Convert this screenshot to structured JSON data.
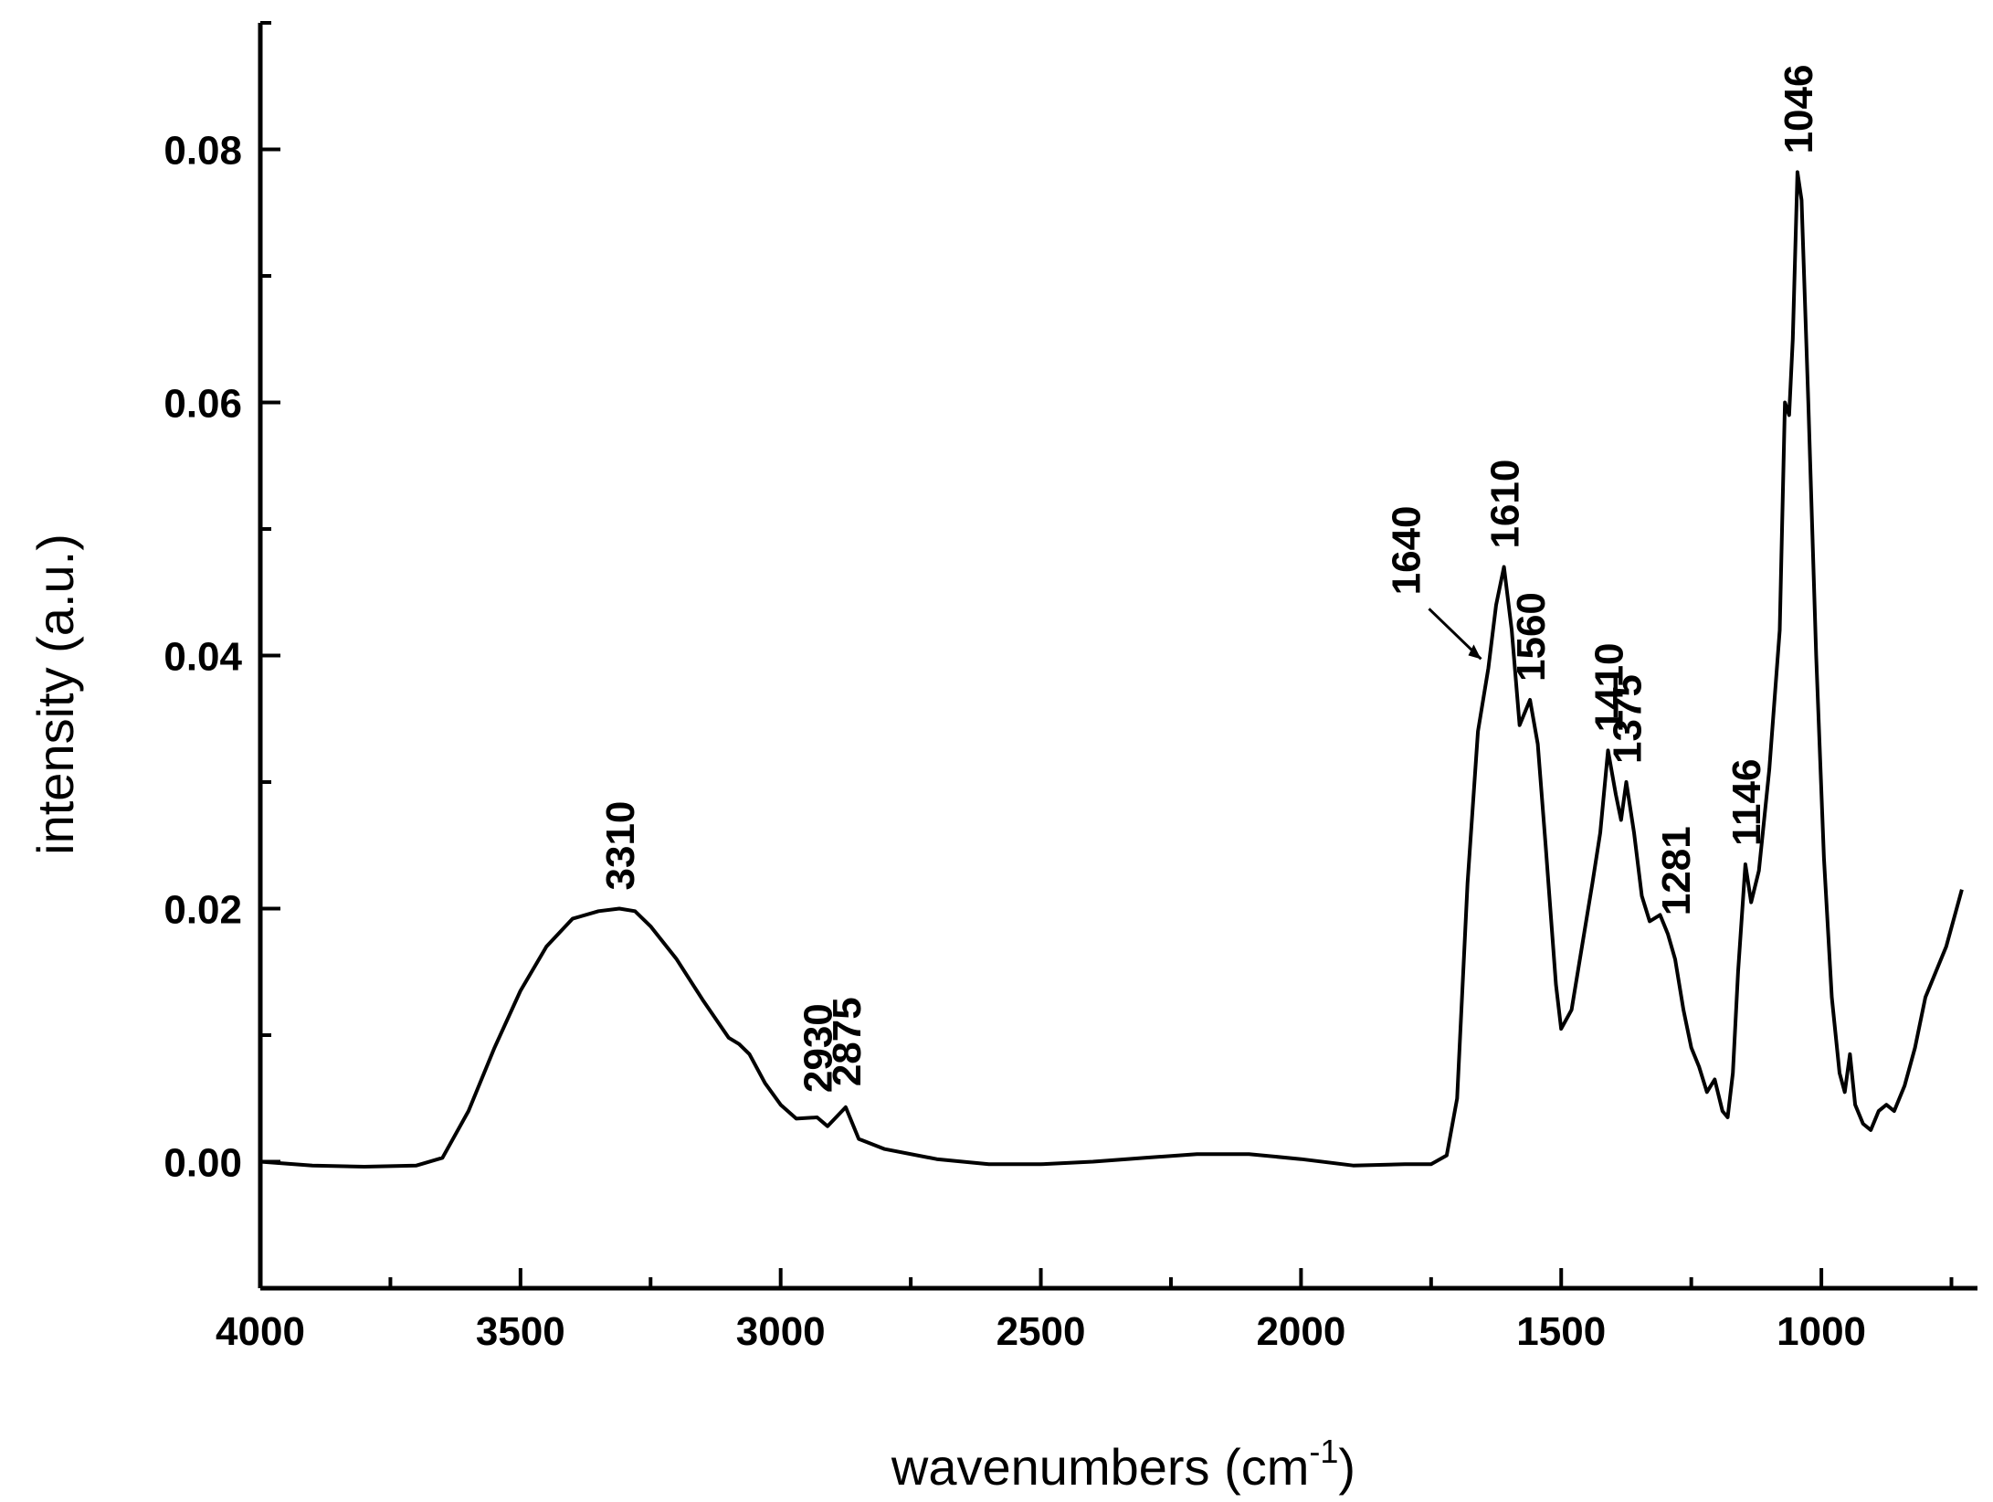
{
  "chart_data": {
    "type": "line",
    "title": "",
    "xlabel": "wavenumbers (cm",
    "xlabel_superscript": "-1",
    "xlabel_suffix": ")",
    "ylabel": "intensity (a.u.)",
    "xlim": [
      4000,
      700
    ],
    "x_reversed": true,
    "ylim": [
      -0.01,
      0.09
    ],
    "grid": false,
    "legend": "none",
    "x_ticks": [
      {
        "value": 4000,
        "label": "4000"
      },
      {
        "value": 3500,
        "label": "3500"
      },
      {
        "value": 3000,
        "label": "3000"
      },
      {
        "value": 2500,
        "label": "2500"
      },
      {
        "value": 2000,
        "label": "2000"
      },
      {
        "value": 1500,
        "label": "1500"
      },
      {
        "value": 1000,
        "label": "1000"
      }
    ],
    "y_ticks": [
      {
        "value": 0.0,
        "label": "0.00"
      },
      {
        "value": 0.02,
        "label": "0.02"
      },
      {
        "value": 0.04,
        "label": "0.04"
      },
      {
        "value": 0.06,
        "label": "0.06"
      },
      {
        "value": 0.08,
        "label": "0.08"
      }
    ],
    "series": [
      {
        "color": "#000000",
        "points": [
          [
            4000,
            0.0
          ],
          [
            3900,
            -0.0003
          ],
          [
            3800,
            -0.0004
          ],
          [
            3700,
            -0.0003
          ],
          [
            3650,
            0.0003
          ],
          [
            3600,
            0.004
          ],
          [
            3550,
            0.009
          ],
          [
            3500,
            0.0135
          ],
          [
            3450,
            0.017
          ],
          [
            3400,
            0.0192
          ],
          [
            3350,
            0.0198
          ],
          [
            3310,
            0.02
          ],
          [
            3280,
            0.0198
          ],
          [
            3250,
            0.0186
          ],
          [
            3200,
            0.016
          ],
          [
            3150,
            0.0128
          ],
          [
            3100,
            0.0098
          ],
          [
            3080,
            0.0093
          ],
          [
            3060,
            0.0085
          ],
          [
            3030,
            0.0062
          ],
          [
            3000,
            0.0045
          ],
          [
            2970,
            0.0034
          ],
          [
            2930,
            0.0035
          ],
          [
            2910,
            0.0028
          ],
          [
            2875,
            0.0043
          ],
          [
            2850,
            0.0018
          ],
          [
            2800,
            0.001
          ],
          [
            2700,
            0.0002
          ],
          [
            2600,
            -0.0002
          ],
          [
            2500,
            -0.0002
          ],
          [
            2400,
            0.0
          ],
          [
            2300,
            0.0003
          ],
          [
            2200,
            0.0006
          ],
          [
            2100,
            0.0006
          ],
          [
            2000,
            0.0002
          ],
          [
            1900,
            -0.0003
          ],
          [
            1800,
            -0.0002
          ],
          [
            1750,
            -0.0002
          ],
          [
            1720,
            0.0005
          ],
          [
            1700,
            0.005
          ],
          [
            1680,
            0.022
          ],
          [
            1660,
            0.034
          ],
          [
            1640,
            0.039
          ],
          [
            1625,
            0.044
          ],
          [
            1610,
            0.047
          ],
          [
            1595,
            0.042
          ],
          [
            1580,
            0.0345
          ],
          [
            1560,
            0.0365
          ],
          [
            1545,
            0.033
          ],
          [
            1530,
            0.025
          ],
          [
            1510,
            0.014
          ],
          [
            1500,
            0.0105
          ],
          [
            1480,
            0.012
          ],
          [
            1460,
            0.017
          ],
          [
            1440,
            0.022
          ],
          [
            1425,
            0.026
          ],
          [
            1410,
            0.0325
          ],
          [
            1395,
            0.029
          ],
          [
            1385,
            0.027
          ],
          [
            1375,
            0.03
          ],
          [
            1360,
            0.026
          ],
          [
            1345,
            0.021
          ],
          [
            1330,
            0.019
          ],
          [
            1310,
            0.0195
          ],
          [
            1295,
            0.018
          ],
          [
            1281,
            0.016
          ],
          [
            1265,
            0.012
          ],
          [
            1250,
            0.009
          ],
          [
            1235,
            0.0075
          ],
          [
            1220,
            0.0055
          ],
          [
            1205,
            0.0065
          ],
          [
            1190,
            0.004
          ],
          [
            1180,
            0.0035
          ],
          [
            1170,
            0.007
          ],
          [
            1160,
            0.015
          ],
          [
            1146,
            0.0235
          ],
          [
            1135,
            0.0205
          ],
          [
            1120,
            0.023
          ],
          [
            1100,
            0.031
          ],
          [
            1080,
            0.042
          ],
          [
            1070,
            0.06
          ],
          [
            1062,
            0.059
          ],
          [
            1055,
            0.065
          ],
          [
            1046,
            0.0782
          ],
          [
            1038,
            0.076
          ],
          [
            1025,
            0.06
          ],
          [
            1010,
            0.04
          ],
          [
            995,
            0.024
          ],
          [
            980,
            0.013
          ],
          [
            965,
            0.007
          ],
          [
            955,
            0.0055
          ],
          [
            945,
            0.0085
          ],
          [
            935,
            0.0045
          ],
          [
            920,
            0.003
          ],
          [
            905,
            0.0025
          ],
          [
            890,
            0.004
          ],
          [
            875,
            0.0045
          ],
          [
            860,
            0.004
          ],
          [
            840,
            0.006
          ],
          [
            820,
            0.009
          ],
          [
            800,
            0.013
          ],
          [
            780,
            0.015
          ],
          [
            760,
            0.017
          ],
          [
            740,
            0.02
          ],
          [
            730,
            0.0215
          ]
        ]
      }
    ],
    "annotations": [
      {
        "text": "3310",
        "x": 3310,
        "y": 0.02
      },
      {
        "text": "2930",
        "x": 2930,
        "y": 0.004
      },
      {
        "text": "2875",
        "x": 2875,
        "y": 0.0045
      },
      {
        "text": "1640",
        "x": 1640,
        "y": 0.039,
        "arrow": true
      },
      {
        "text": "1610",
        "x": 1610,
        "y": 0.047
      },
      {
        "text": "1560",
        "x": 1560,
        "y": 0.0365
      },
      {
        "text": "1410",
        "x": 1410,
        "y": 0.0325
      },
      {
        "text": "1375",
        "x": 1375,
        "y": 0.03
      },
      {
        "text": "1281",
        "x": 1281,
        "y": 0.018
      },
      {
        "text": "1146",
        "x": 1146,
        "y": 0.0235
      },
      {
        "text": "1046",
        "x": 1046,
        "y": 0.0782
      }
    ]
  }
}
